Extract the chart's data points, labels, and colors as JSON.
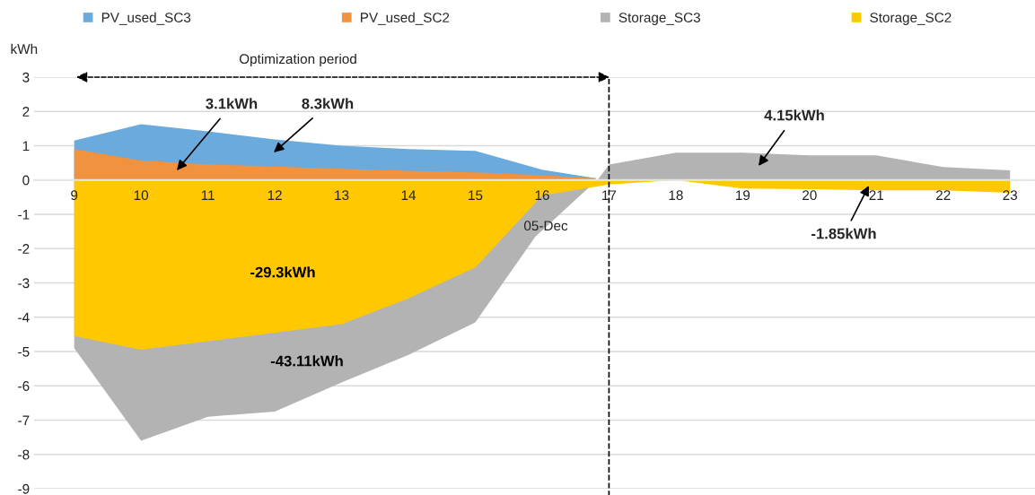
{
  "chart_data": {
    "type": "area",
    "ylabel": "kWh",
    "xlim": [
      8.4,
      23.4
    ],
    "xticks": [
      9,
      10,
      11,
      12,
      13,
      14,
      15,
      16,
      17,
      18,
      19,
      20,
      21,
      22,
      23
    ],
    "ylim": [
      -9,
      3
    ],
    "yticks": [
      -9,
      -8,
      -7,
      -6,
      -5,
      -4,
      -3,
      -2,
      -1,
      0,
      1,
      2,
      3
    ],
    "grid": "y",
    "legend": "top",
    "series": [
      {
        "name": "PV_used_SC3",
        "color": "#6aaadd",
        "x": [
          9,
          10,
          11,
          12,
          13,
          14,
          15,
          16,
          16.8
        ],
        "values": [
          1.15,
          1.63,
          1.42,
          1.18,
          1.0,
          0.9,
          0.85,
          0.3,
          0.05
        ]
      },
      {
        "name": "PV_used_SC2",
        "color": "#f0923e",
        "x": [
          9,
          10,
          11,
          12,
          13,
          14,
          15,
          16,
          16.8
        ],
        "values": [
          0.9,
          0.57,
          0.46,
          0.39,
          0.33,
          0.27,
          0.22,
          0.14,
          0.05
        ]
      },
      {
        "name": "Storage_SC3",
        "color": "#b3b3b3",
        "x": [
          9,
          10,
          11,
          12,
          13,
          14,
          15,
          15.9,
          16.85,
          17,
          18,
          19,
          20,
          21,
          22,
          23
        ],
        "values": [
          -4.9,
          -7.6,
          -6.9,
          -6.75,
          -5.9,
          -5.1,
          -4.15,
          -1.65,
          0.05,
          0.45,
          0.8,
          0.8,
          0.72,
          0.72,
          0.38,
          0.28
        ]
      },
      {
        "name": "Storage_SC2",
        "color": "#ffc800",
        "x": [
          9,
          10,
          11,
          12,
          13,
          14,
          15,
          16,
          17,
          18,
          19,
          20,
          21,
          22,
          23
        ],
        "values": [
          -4.55,
          -4.95,
          -4.7,
          -4.45,
          -4.2,
          -3.45,
          -2.55,
          -0.45,
          -0.13,
          0.0,
          -0.25,
          -0.27,
          -0.3,
          -0.3,
          -0.37
        ]
      }
    ],
    "ref_lines": [
      {
        "axis": "x",
        "value": 17,
        "color": "#000000",
        "line_style": "dashed"
      }
    ],
    "annotations": [
      "3.1kWh",
      "8.3kWh",
      "-29.3kWh",
      "-43.11kWh",
      "4.15kWh",
      "-1.85kWh",
      "05-Dec",
      "Optimization period"
    ]
  }
}
